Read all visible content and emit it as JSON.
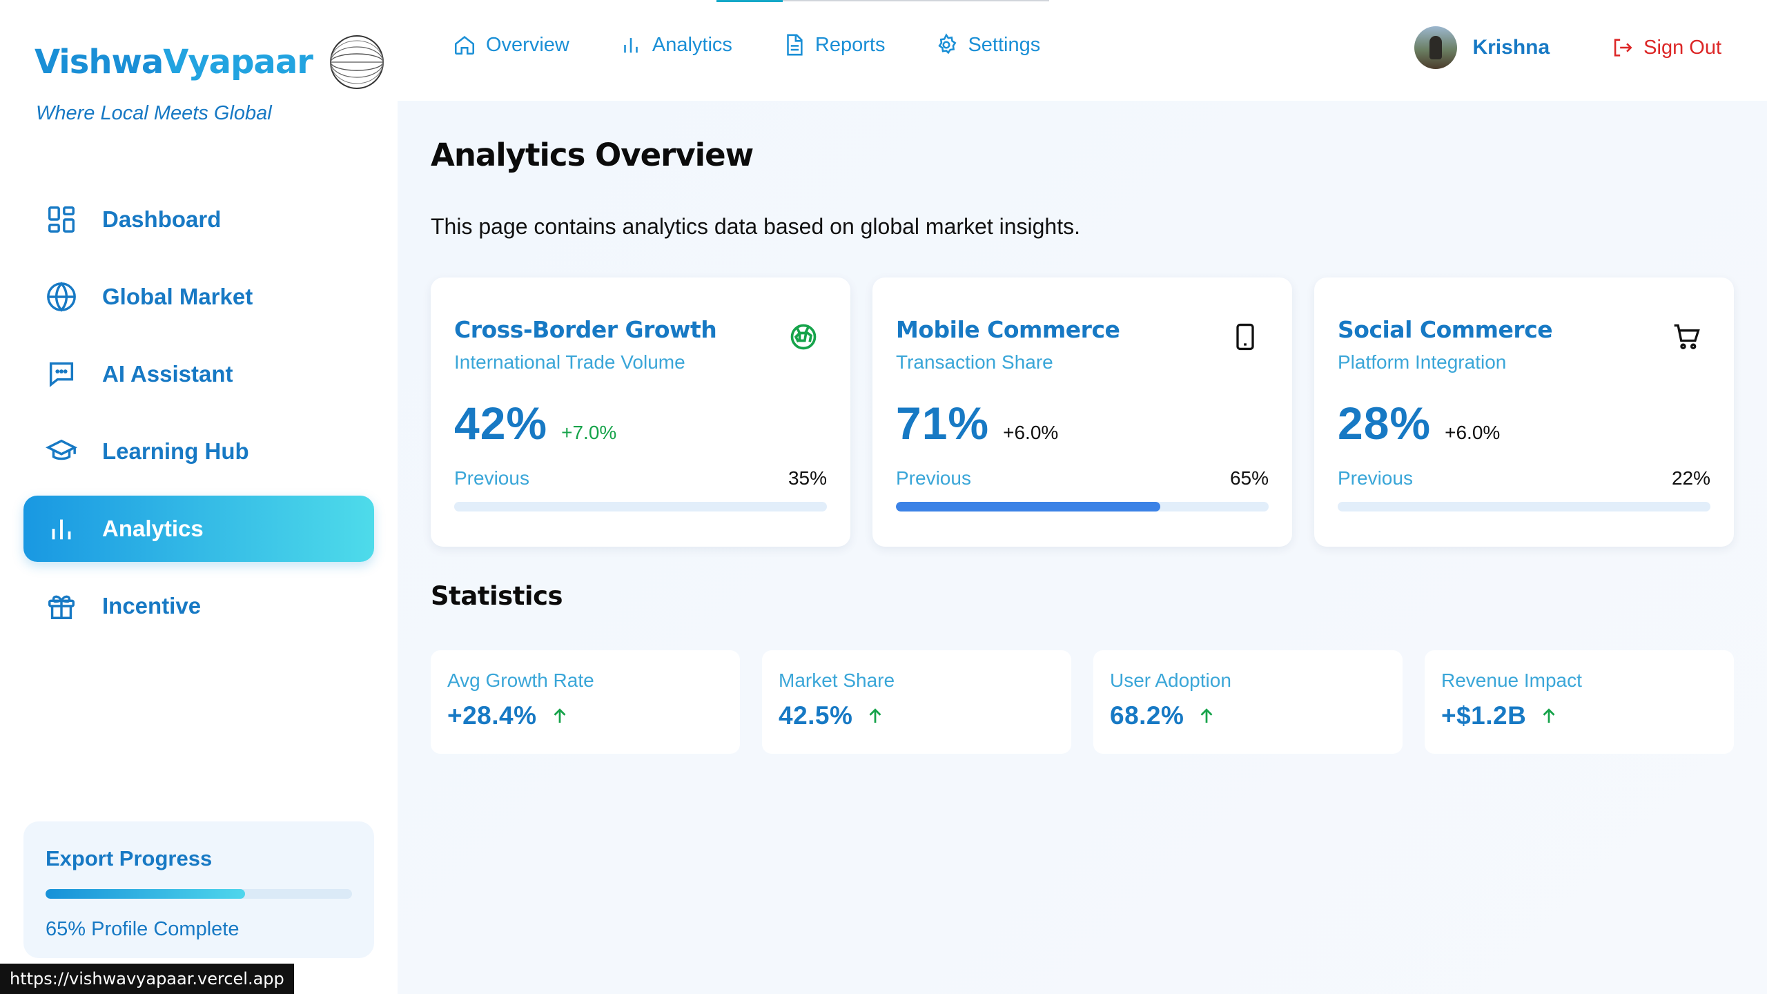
{
  "brand": {
    "name_part1": "Vishwa",
    "name_part2": "Vyapaar",
    "tagline": "Where Local Meets Global",
    "logo_icon": "globe-logo-icon"
  },
  "sidebar": {
    "items": [
      {
        "label": "Dashboard",
        "icon": "dashboard-grid-icon",
        "active": false
      },
      {
        "label": "Global Market",
        "icon": "globe-icon",
        "active": false
      },
      {
        "label": "AI Assistant",
        "icon": "chat-icon",
        "active": false
      },
      {
        "label": "Learning Hub",
        "icon": "graduation-cap-icon",
        "active": false
      },
      {
        "label": "Analytics",
        "icon": "bar-chart-icon",
        "active": true
      },
      {
        "label": "Incentive",
        "icon": "gift-icon",
        "active": false
      }
    ],
    "export": {
      "title": "Export Progress",
      "progress": 0.65,
      "label": "65% Profile Complete"
    }
  },
  "status_bar": {
    "url": "https://vishwavyapaar.vercel.app"
  },
  "header": {
    "nav": [
      {
        "label": "Overview",
        "icon": "home-icon"
      },
      {
        "label": "Analytics",
        "icon": "bar-chart-icon"
      },
      {
        "label": "Reports",
        "icon": "document-icon"
      },
      {
        "label": "Settings",
        "icon": "gear-icon"
      }
    ],
    "user": {
      "name": "Krishna"
    },
    "signout_label": "Sign Out"
  },
  "main": {
    "title": "Analytics Overview",
    "description": "This page contains analytics data based on global market insights.",
    "metrics": [
      {
        "title": "Cross-Border Growth",
        "subtitle": "International Trade Volume",
        "value": "42%",
        "change": "+7.0%",
        "change_color": "#16a34a",
        "previous_label": "Previous",
        "previous_value": "35%",
        "progress": 0.0,
        "icon": "globe-network-icon"
      },
      {
        "title": "Mobile Commerce",
        "subtitle": "Transaction Share",
        "value": "71%",
        "change": "+6.0%",
        "change_color": "#111111",
        "previous_label": "Previous",
        "previous_value": "65%",
        "progress": 0.71,
        "icon": "smartphone-icon"
      },
      {
        "title": "Social Commerce",
        "subtitle": "Platform Integration",
        "value": "28%",
        "change": "+6.0%",
        "change_color": "#111111",
        "previous_label": "Previous",
        "previous_value": "22%",
        "progress": 0.0,
        "icon": "shopping-cart-icon"
      }
    ],
    "statistics_title": "Statistics",
    "statistics": [
      {
        "label": "Avg Growth Rate",
        "value": "+28.4%",
        "icon": "arrow-up-icon"
      },
      {
        "label": "Market Share",
        "value": "42.5%",
        "icon": "arrow-up-icon"
      },
      {
        "label": "User Adoption",
        "value": "68.2%",
        "icon": "arrow-up-icon"
      },
      {
        "label": "Revenue Impact",
        "value": "+$1.2B",
        "icon": "arrow-up-icon"
      }
    ]
  },
  "colors": {
    "brand_blue": "#1779c4",
    "accent_cyan": "#4edbea",
    "signout_red": "#dc2626",
    "positive_green": "#16a34a",
    "progress_blue": "#3b82e6"
  }
}
